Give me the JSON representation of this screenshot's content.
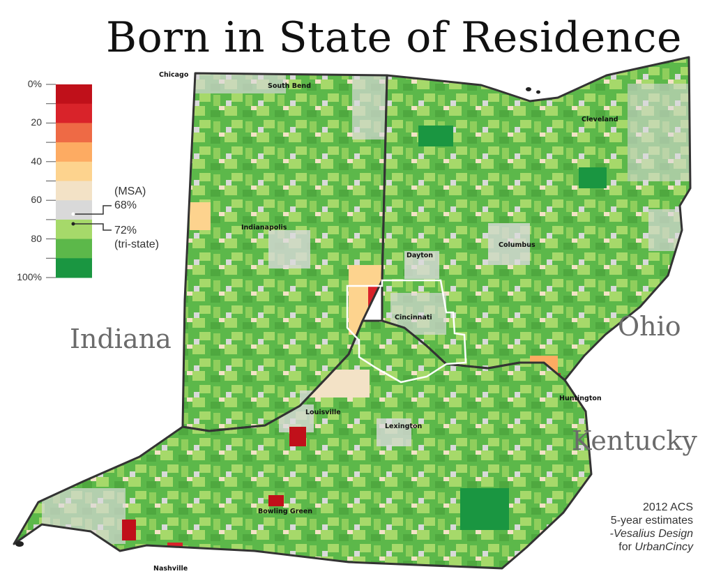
{
  "title": "Born in State of Residence",
  "states": [
    {
      "name": "Indiana",
      "label": "Indiana"
    },
    {
      "name": "Ohio",
      "label": "Ohio"
    },
    {
      "name": "Kentucky",
      "label": "Kentucky"
    }
  ],
  "cities": [
    "Chicago",
    "South Bend",
    "Cleveland",
    "Indianapolis",
    "Dayton",
    "Columbus",
    "Cincinnati",
    "Louisville",
    "Lexington",
    "Huntington",
    "Bowling Green",
    "Nashville"
  ],
  "legend": {
    "ticks": [
      "0%",
      "20",
      "40",
      "60",
      "80",
      "100%"
    ],
    "bins": [
      {
        "range": "0-10%",
        "color": "#c0101a"
      },
      {
        "range": "10-20%",
        "color": "#d9232a"
      },
      {
        "range": "20-30%",
        "color": "#ee6a45"
      },
      {
        "range": "30-40%",
        "color": "#fdab62"
      },
      {
        "range": "40-50%",
        "color": "#fdd38e"
      },
      {
        "range": "50-60%",
        "color": "#f3e2c6"
      },
      {
        "range": "60-70%",
        "color": "#d9d9d9"
      },
      {
        "range": "70-80%",
        "color": "#a6d96a"
      },
      {
        "range": "80-90%",
        "color": "#5cb84a"
      },
      {
        "range": "90-100%",
        "color": "#1a9641"
      }
    ],
    "msa_label": "(MSA)",
    "msa_value": "68%",
    "tristate_value": "72%",
    "tristate_label": "(tri-state)"
  },
  "credit": {
    "line1": "2012 ACS",
    "line2": "5-year estimates",
    "line3": "-Vesalius Design",
    "line4_prefix": "for ",
    "line4_name": "UrbanCincy"
  },
  "colors": {
    "border": "#333333",
    "cincinnati_msa_outline": "#ffffff",
    "dominant_fill": "#5cb84a"
  }
}
